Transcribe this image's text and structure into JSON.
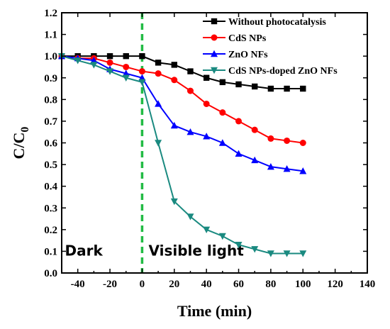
{
  "chart_data": {
    "type": "line",
    "xlabel": "Time (min)",
    "ylabel": "C/C",
    "ylabel_sub": "0",
    "xlim": [
      -50,
      140
    ],
    "ylim": [
      0.0,
      1.2
    ],
    "xticks": [
      -40,
      -20,
      0,
      20,
      40,
      60,
      80,
      100,
      120,
      140
    ],
    "xtick_labels": [
      "-40",
      "-20",
      "0",
      "20",
      "40",
      "60",
      "80",
      "100",
      "120",
      "140"
    ],
    "yticks": [
      0.0,
      0.1,
      0.2,
      0.3,
      0.4,
      0.5,
      0.6,
      0.7,
      0.8,
      0.9,
      1.0,
      1.1,
      1.2
    ],
    "ytick_labels": [
      "0.0",
      "0.1",
      "0.2",
      "0.3",
      "0.4",
      "0.5",
      "0.6",
      "0.7",
      "0.8",
      "0.9",
      "1.0",
      "1.1",
      "1.2"
    ],
    "divider_x": 0,
    "divider_color": "#22bb44",
    "regions": [
      {
        "text": "Dark",
        "x": -48,
        "y": 0.08
      },
      {
        "text": "Visible light",
        "x": 4,
        "y": 0.08
      }
    ],
    "legend_position": "top-right",
    "series": [
      {
        "name": "Without photocatalysis",
        "color": "#000000",
        "marker": "square",
        "x": [
          -50,
          -40,
          -30,
          -20,
          -10,
          0,
          10,
          20,
          30,
          40,
          50,
          60,
          70,
          80,
          90,
          100
        ],
        "y": [
          1.0,
          1.0,
          1.0,
          1.0,
          1.0,
          1.0,
          0.97,
          0.96,
          0.93,
          0.9,
          0.88,
          0.87,
          0.86,
          0.85,
          0.85,
          0.85
        ]
      },
      {
        "name": "CdS NPs",
        "color": "#ff0000",
        "marker": "circle",
        "x": [
          -50,
          -40,
          -30,
          -20,
          -10,
          0,
          10,
          20,
          30,
          40,
          50,
          60,
          70,
          80,
          90,
          100
        ],
        "y": [
          1.0,
          0.99,
          0.99,
          0.97,
          0.95,
          0.93,
          0.92,
          0.89,
          0.84,
          0.78,
          0.74,
          0.7,
          0.66,
          0.62,
          0.61,
          0.6
        ]
      },
      {
        "name": "ZnO NFs",
        "color": "#0000ff",
        "marker": "triangle",
        "x": [
          -50,
          -40,
          -30,
          -20,
          -10,
          0,
          10,
          20,
          30,
          40,
          50,
          60,
          70,
          80,
          90,
          100
        ],
        "y": [
          1.0,
          0.99,
          0.98,
          0.94,
          0.92,
          0.9,
          0.78,
          0.68,
          0.65,
          0.63,
          0.6,
          0.55,
          0.52,
          0.49,
          0.48,
          0.47
        ]
      },
      {
        "name": "CdS NPs-doped ZnO NFs",
        "color": "#1a8a80",
        "marker": "triangle-down",
        "x": [
          -50,
          -40,
          -30,
          -20,
          -10,
          0,
          10,
          20,
          30,
          40,
          50,
          60,
          70,
          80,
          90,
          100
        ],
        "y": [
          1.0,
          0.98,
          0.96,
          0.93,
          0.9,
          0.88,
          0.6,
          0.33,
          0.26,
          0.2,
          0.17,
          0.13,
          0.11,
          0.09,
          0.09,
          0.09
        ]
      }
    ]
  }
}
